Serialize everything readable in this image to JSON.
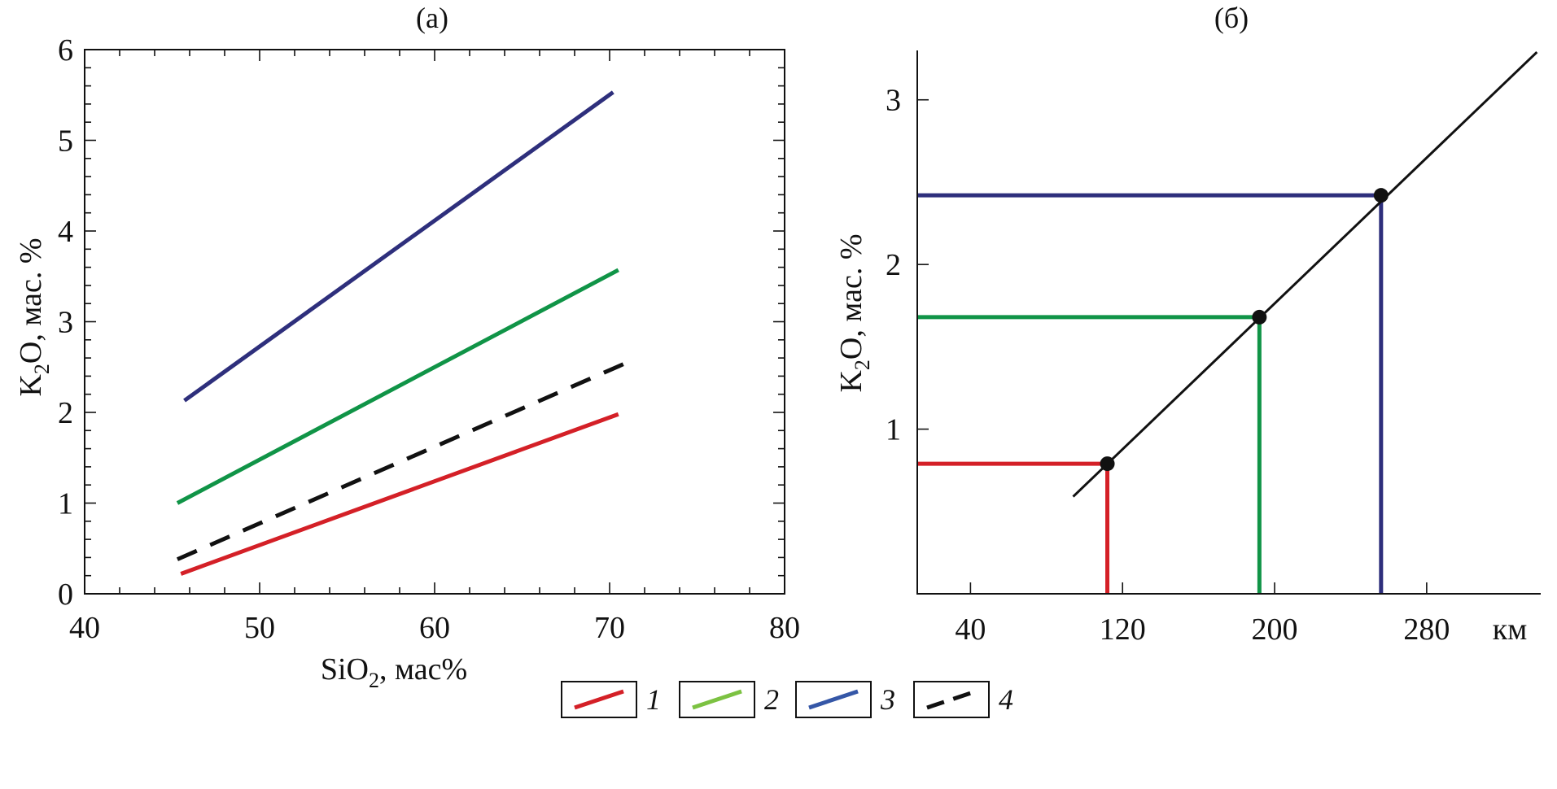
{
  "chart_data": [
    {
      "type": "line",
      "panel_label": "(а)",
      "xlabel_main": "SiO",
      "xlabel_sub": "2",
      "xlabel_rest": ", мас%",
      "ylabel_main": "K",
      "ylabel_sub": "2",
      "ylabel_rest": "O, мас. %",
      "xlim": [
        40,
        80
      ],
      "ylim": [
        0,
        6
      ],
      "xticks": [
        40,
        50,
        60,
        70,
        80
      ],
      "yticks": [
        0,
        1,
        2,
        3,
        4,
        5,
        6
      ],
      "grid": false,
      "series": [
        {
          "legend_key": "1",
          "color": "#d42027",
          "dash": false,
          "x": [
            45.5,
            70.5
          ],
          "y": [
            0.22,
            1.98
          ]
        },
        {
          "legend_key": "2",
          "color": "#109447",
          "dash": false,
          "x": [
            45.3,
            70.5
          ],
          "y": [
            1.0,
            3.57
          ]
        },
        {
          "legend_key": "3",
          "color": "#2e2f7c",
          "dash": false,
          "x": [
            45.7,
            70.2
          ],
          "y": [
            2.13,
            5.53
          ]
        },
        {
          "legend_key": "4",
          "color": "#111111",
          "dash": true,
          "x": [
            45.3,
            71.0
          ],
          "y": [
            0.38,
            2.55
          ]
        }
      ]
    },
    {
      "type": "line",
      "panel_label": "(б)",
      "ylabel_main": "K",
      "ylabel_sub": "2",
      "ylabel_rest": "O, мас. %",
      "x_unit_label": "км",
      "xlim": [
        12,
        340
      ],
      "ylim": [
        0,
        3.3
      ],
      "xticks": [
        40,
        120,
        200,
        280
      ],
      "yticks": [
        1,
        2,
        3
      ],
      "grid": false,
      "main_line": {
        "color": "#111111",
        "x": [
          94,
          338
        ],
        "y": [
          0.59,
          3.29
        ]
      },
      "points": [
        {
          "x": 112,
          "y": 0.79,
          "color": "#d42027"
        },
        {
          "x": 192,
          "y": 1.68,
          "color": "#109447"
        },
        {
          "x": 256,
          "y": 2.42,
          "color": "#2e2f7c"
        }
      ]
    }
  ],
  "legend": [
    {
      "key": "1",
      "label": "1",
      "color": "#d42027",
      "dash": false
    },
    {
      "key": "2",
      "label": "2",
      "color": "#7cc242",
      "dash": false
    },
    {
      "key": "3",
      "label": "3",
      "color": "#3557a7",
      "dash": false
    },
    {
      "key": "4",
      "label": "4",
      "color": "#111111",
      "dash": true
    }
  ]
}
